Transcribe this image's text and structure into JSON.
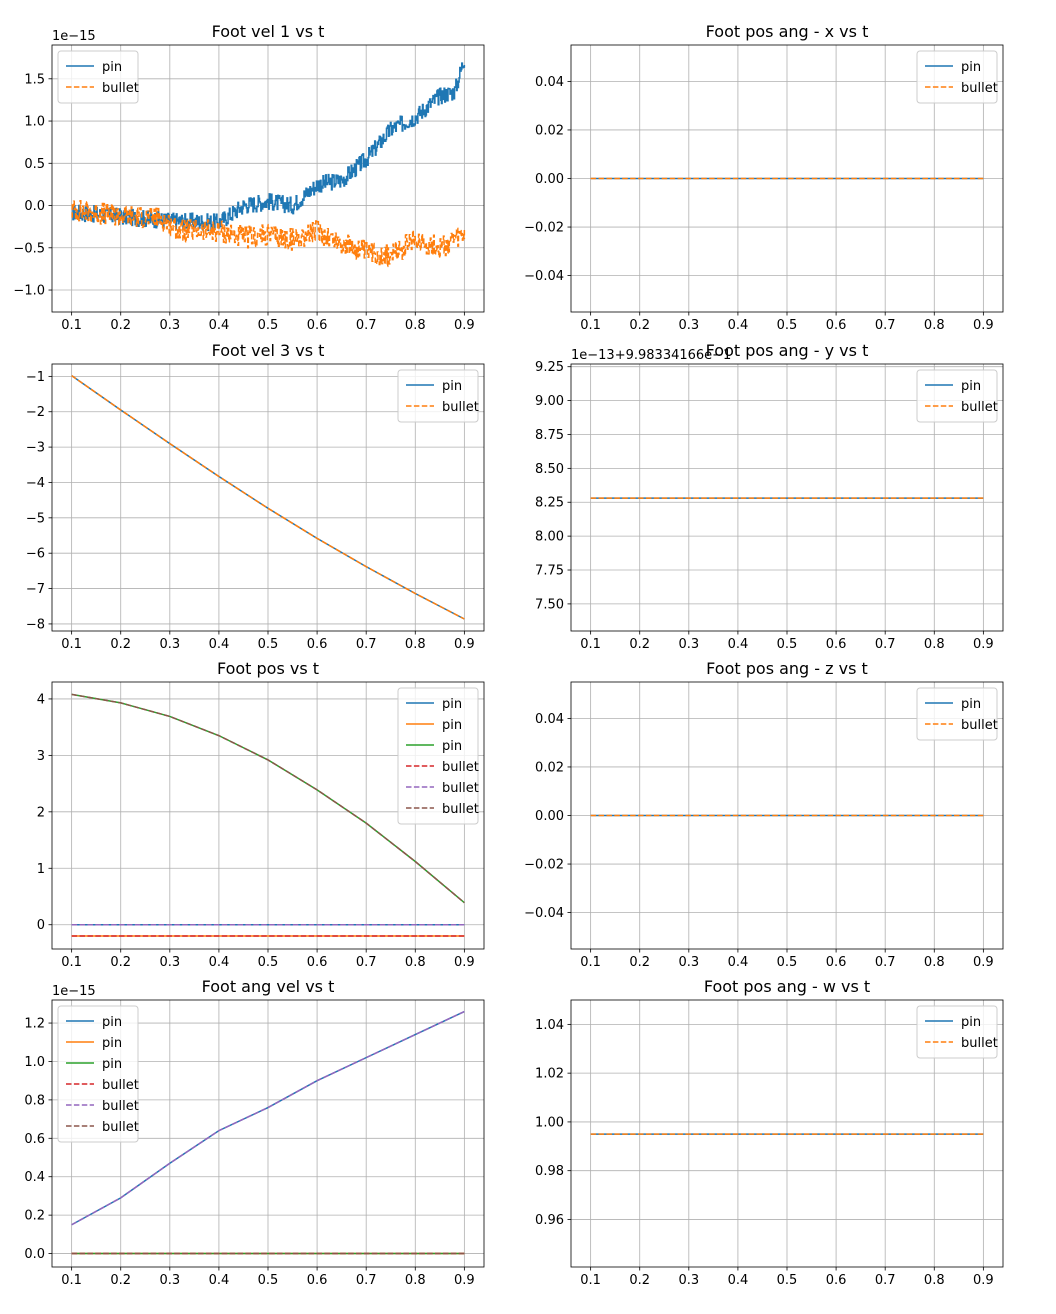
{
  "chart_data": [
    {
      "type": "line",
      "title": "Foot vel 1 vs t",
      "offset_text": "1e−15",
      "xlim": [
        0.06,
        0.94
      ],
      "ylim": [
        -1.26,
        1.9
      ],
      "xticks": [
        "0.1",
        "0.2",
        "0.3",
        "0.4",
        "0.5",
        "0.6",
        "0.7",
        "0.8",
        "0.9"
      ],
      "xtick_values": [
        0.1,
        0.2,
        0.3,
        0.4,
        0.5,
        0.6,
        0.7,
        0.8,
        0.9
      ],
      "yticks": [
        "−1.0",
        "−0.5",
        "0.0",
        "0.5",
        "1.0",
        "1.5"
      ],
      "ytick_values": [
        -1.0,
        -0.5,
        0.0,
        0.5,
        1.0,
        1.5
      ],
      "grid": true,
      "legend": "upper left",
      "series": [
        {
          "name": "pin",
          "style": "solid",
          "color": "#1f77b4",
          "noise": 0.1,
          "x": [
            0.1,
            0.2,
            0.3,
            0.4,
            0.45,
            0.5,
            0.55,
            0.6,
            0.65,
            0.7,
            0.75,
            0.8,
            0.85,
            0.88,
            0.9
          ],
          "y": [
            -0.08,
            -0.13,
            -0.18,
            -0.2,
            0.0,
            0.05,
            0.0,
            0.25,
            0.3,
            0.55,
            0.9,
            1.05,
            1.3,
            1.35,
            1.75
          ]
        },
        {
          "name": "bullet",
          "style": "dashed",
          "color": "#ff7f0e",
          "noise": 0.13,
          "x": [
            0.1,
            0.2,
            0.28,
            0.32,
            0.4,
            0.45,
            0.5,
            0.55,
            0.6,
            0.65,
            0.7,
            0.75,
            0.8,
            0.85,
            0.9
          ],
          "y": [
            -0.05,
            -0.12,
            -0.15,
            -0.3,
            -0.3,
            -0.38,
            -0.35,
            -0.4,
            -0.3,
            -0.45,
            -0.55,
            -0.6,
            -0.4,
            -0.5,
            -0.35
          ]
        }
      ]
    },
    {
      "type": "line",
      "title": "Foot pos ang - x vs t",
      "offset_text": "",
      "xlim": [
        0.06,
        0.94
      ],
      "ylim": [
        -0.055,
        0.055
      ],
      "xticks": [
        "0.1",
        "0.2",
        "0.3",
        "0.4",
        "0.5",
        "0.6",
        "0.7",
        "0.8",
        "0.9"
      ],
      "xtick_values": [
        0.1,
        0.2,
        0.3,
        0.4,
        0.5,
        0.6,
        0.7,
        0.8,
        0.9
      ],
      "yticks": [
        "−0.04",
        "−0.02",
        "0.00",
        "0.02",
        "0.04"
      ],
      "ytick_values": [
        -0.04,
        -0.02,
        0.0,
        0.02,
        0.04
      ],
      "grid": true,
      "legend": "upper right",
      "series": [
        {
          "name": "pin",
          "style": "solid",
          "color": "#1f77b4",
          "x": [
            0.1,
            0.9
          ],
          "y": [
            0,
            0
          ]
        },
        {
          "name": "bullet",
          "style": "dashed",
          "color": "#ff7f0e",
          "x": [
            0.1,
            0.9
          ],
          "y": [
            0,
            0
          ]
        }
      ]
    },
    {
      "type": "line",
      "title": "Foot vel 3 vs t",
      "offset_text": "",
      "xlim": [
        0.06,
        0.94
      ],
      "ylim": [
        -8.2,
        -0.65
      ],
      "xticks": [
        "0.1",
        "0.2",
        "0.3",
        "0.4",
        "0.5",
        "0.6",
        "0.7",
        "0.8",
        "0.9"
      ],
      "xtick_values": [
        0.1,
        0.2,
        0.3,
        0.4,
        0.5,
        0.6,
        0.7,
        0.8,
        0.9
      ],
      "yticks": [
        "−8",
        "−7",
        "−6",
        "−5",
        "−4",
        "−3",
        "−2",
        "−1"
      ],
      "ytick_values": [
        -8,
        -7,
        -6,
        -5,
        -4,
        -3,
        -2,
        -1
      ],
      "grid": true,
      "legend": "upper right",
      "series": [
        {
          "name": "pin",
          "style": "solid",
          "color": "#1f77b4",
          "x": [
            0.1,
            0.2,
            0.3,
            0.4,
            0.5,
            0.6,
            0.7,
            0.8,
            0.9
          ],
          "y": [
            -0.98,
            -1.95,
            -2.9,
            -3.83,
            -4.73,
            -5.58,
            -6.38,
            -7.14,
            -7.86
          ]
        },
        {
          "name": "bullet",
          "style": "dashed",
          "color": "#ff7f0e",
          "x": [
            0.1,
            0.2,
            0.3,
            0.4,
            0.5,
            0.6,
            0.7,
            0.8,
            0.9
          ],
          "y": [
            -0.98,
            -1.95,
            -2.9,
            -3.83,
            -4.73,
            -5.58,
            -6.38,
            -7.14,
            -7.86
          ]
        }
      ]
    },
    {
      "type": "line",
      "title": "Foot pos ang - y vs t",
      "offset_text": "1e−13+9.98334166e−1",
      "xlim": [
        0.06,
        0.94
      ],
      "ylim": [
        7.3,
        9.27
      ],
      "xticks": [
        "0.1",
        "0.2",
        "0.3",
        "0.4",
        "0.5",
        "0.6",
        "0.7",
        "0.8",
        "0.9"
      ],
      "xtick_values": [
        0.1,
        0.2,
        0.3,
        0.4,
        0.5,
        0.6,
        0.7,
        0.8,
        0.9
      ],
      "yticks": [
        "7.50",
        "7.75",
        "8.00",
        "8.25",
        "8.50",
        "8.75",
        "9.00",
        "9.25"
      ],
      "ytick_values": [
        7.5,
        7.75,
        8.0,
        8.25,
        8.5,
        8.75,
        9.0,
        9.25
      ],
      "grid": true,
      "legend": "upper right",
      "series": [
        {
          "name": "pin",
          "style": "solid",
          "color": "#1f77b4",
          "x": [
            0.1,
            0.9
          ],
          "y": [
            8.28,
            8.28
          ]
        },
        {
          "name": "bullet",
          "style": "dashed",
          "color": "#ff7f0e",
          "x": [
            0.1,
            0.9
          ],
          "y": [
            8.28,
            8.28
          ]
        }
      ]
    },
    {
      "type": "line",
      "title": "Foot pos vs t",
      "offset_text": "",
      "xlim": [
        0.06,
        0.94
      ],
      "ylim": [
        -0.43,
        4.3
      ],
      "xticks": [
        "0.1",
        "0.2",
        "0.3",
        "0.4",
        "0.5",
        "0.6",
        "0.7",
        "0.8",
        "0.9"
      ],
      "xtick_values": [
        0.1,
        0.2,
        0.3,
        0.4,
        0.5,
        0.6,
        0.7,
        0.8,
        0.9
      ],
      "yticks": [
        "0",
        "1",
        "2",
        "3",
        "4"
      ],
      "ytick_values": [
        0,
        1,
        2,
        3,
        4
      ],
      "grid": true,
      "legend": "upper right",
      "series": [
        {
          "name": "pin",
          "style": "solid",
          "color": "#1f77b4",
          "x": [
            0.1,
            0.9
          ],
          "y": [
            0,
            0
          ]
        },
        {
          "name": "pin",
          "style": "solid",
          "color": "#ff7f0e",
          "x": [
            0.1,
            0.9
          ],
          "y": [
            -0.2,
            -0.2
          ]
        },
        {
          "name": "pin",
          "style": "solid",
          "color": "#2ca02c",
          "x": [
            0.1,
            0.2,
            0.3,
            0.4,
            0.5,
            0.6,
            0.7,
            0.8,
            0.9
          ],
          "y": [
            4.08,
            3.93,
            3.69,
            3.35,
            2.92,
            2.39,
            1.8,
            1.12,
            0.39
          ]
        },
        {
          "name": "bullet",
          "style": "dashed",
          "color": "#d62728",
          "x": [
            0.1,
            0.9
          ],
          "y": [
            -0.2,
            -0.2
          ]
        },
        {
          "name": "bullet",
          "style": "dashed",
          "color": "#9467bd",
          "x": [
            0.1,
            0.9
          ],
          "y": [
            0,
            0
          ]
        },
        {
          "name": "bullet",
          "style": "dashed",
          "color": "#8c564b",
          "x": [
            0.1,
            0.2,
            0.3,
            0.4,
            0.5,
            0.6,
            0.7,
            0.8,
            0.9
          ],
          "y": [
            4.08,
            3.93,
            3.69,
            3.35,
            2.92,
            2.39,
            1.8,
            1.12,
            0.39
          ]
        }
      ]
    },
    {
      "type": "line",
      "title": "Foot pos ang - z vs t",
      "offset_text": "",
      "xlim": [
        0.06,
        0.94
      ],
      "ylim": [
        -0.055,
        0.055
      ],
      "xticks": [
        "0.1",
        "0.2",
        "0.3",
        "0.4",
        "0.5",
        "0.6",
        "0.7",
        "0.8",
        "0.9"
      ],
      "xtick_values": [
        0.1,
        0.2,
        0.3,
        0.4,
        0.5,
        0.6,
        0.7,
        0.8,
        0.9
      ],
      "yticks": [
        "−0.04",
        "−0.02",
        "0.00",
        "0.02",
        "0.04"
      ],
      "ytick_values": [
        -0.04,
        -0.02,
        0.0,
        0.02,
        0.04
      ],
      "grid": true,
      "legend": "upper right",
      "series": [
        {
          "name": "pin",
          "style": "solid",
          "color": "#1f77b4",
          "x": [
            0.1,
            0.9
          ],
          "y": [
            0,
            0
          ]
        },
        {
          "name": "bullet",
          "style": "dashed",
          "color": "#ff7f0e",
          "x": [
            0.1,
            0.9
          ],
          "y": [
            0,
            0
          ]
        }
      ]
    },
    {
      "type": "line",
      "title": "Foot ang vel vs t",
      "offset_text": "1e−15",
      "xlim": [
        0.06,
        0.94
      ],
      "ylim": [
        -0.07,
        1.32
      ],
      "xticks": [
        "0.1",
        "0.2",
        "0.3",
        "0.4",
        "0.5",
        "0.6",
        "0.7",
        "0.8",
        "0.9"
      ],
      "xtick_values": [
        0.1,
        0.2,
        0.3,
        0.4,
        0.5,
        0.6,
        0.7,
        0.8,
        0.9
      ],
      "yticks": [
        "0.0",
        "0.2",
        "0.4",
        "0.6",
        "0.8",
        "1.0",
        "1.2"
      ],
      "ytick_values": [
        0.0,
        0.2,
        0.4,
        0.6,
        0.8,
        1.0,
        1.2
      ],
      "grid": true,
      "legend": "upper left",
      "series": [
        {
          "name": "pin",
          "style": "solid",
          "color": "#1f77b4",
          "x": [
            0.1,
            0.2,
            0.3,
            0.4,
            0.5,
            0.6,
            0.7,
            0.8,
            0.9
          ],
          "y": [
            0.15,
            0.29,
            0.47,
            0.64,
            0.76,
            0.9,
            1.02,
            1.14,
            1.26
          ]
        },
        {
          "name": "pin",
          "style": "solid",
          "color": "#ff7f0e",
          "x": [
            0.1,
            0.9
          ],
          "y": [
            0,
            0
          ]
        },
        {
          "name": "pin",
          "style": "solid",
          "color": "#2ca02c",
          "x": [
            0.1,
            0.9
          ],
          "y": [
            0,
            0
          ]
        },
        {
          "name": "bullet",
          "style": "dashed",
          "color": "#d62728",
          "x": [
            0.1,
            0.9
          ],
          "y": [
            0,
            0
          ]
        },
        {
          "name": "bullet",
          "style": "dashed",
          "color": "#9467bd",
          "x": [
            0.1,
            0.2,
            0.3,
            0.4,
            0.5,
            0.6,
            0.7,
            0.8,
            0.9
          ],
          "y": [
            0.15,
            0.29,
            0.47,
            0.64,
            0.76,
            0.9,
            1.02,
            1.14,
            1.26
          ]
        },
        {
          "name": "bullet",
          "style": "dashed",
          "color": "#8c564b",
          "x": [
            0.1,
            0.9
          ],
          "y": [
            0,
            0
          ]
        }
      ]
    },
    {
      "type": "line",
      "title": "Foot pos ang - w vs t",
      "offset_text": "",
      "xlim": [
        0.06,
        0.94
      ],
      "ylim": [
        0.9405,
        1.05
      ],
      "xticks": [
        "0.1",
        "0.2",
        "0.3",
        "0.4",
        "0.5",
        "0.6",
        "0.7",
        "0.8",
        "0.9"
      ],
      "xtick_values": [
        0.1,
        0.2,
        0.3,
        0.4,
        0.5,
        0.6,
        0.7,
        0.8,
        0.9
      ],
      "yticks": [
        "0.96",
        "0.98",
        "1.00",
        "1.02",
        "1.04"
      ],
      "ytick_values": [
        0.96,
        0.98,
        1.0,
        1.02,
        1.04
      ],
      "grid": true,
      "legend": "upper right",
      "series": [
        {
          "name": "pin",
          "style": "solid",
          "color": "#1f77b4",
          "x": [
            0.1,
            0.9
          ],
          "y": [
            0.995,
            0.995
          ]
        },
        {
          "name": "bullet",
          "style": "dashed",
          "color": "#ff7f0e",
          "x": [
            0.1,
            0.9
          ],
          "y": [
            0.995,
            0.995
          ]
        }
      ]
    }
  ]
}
